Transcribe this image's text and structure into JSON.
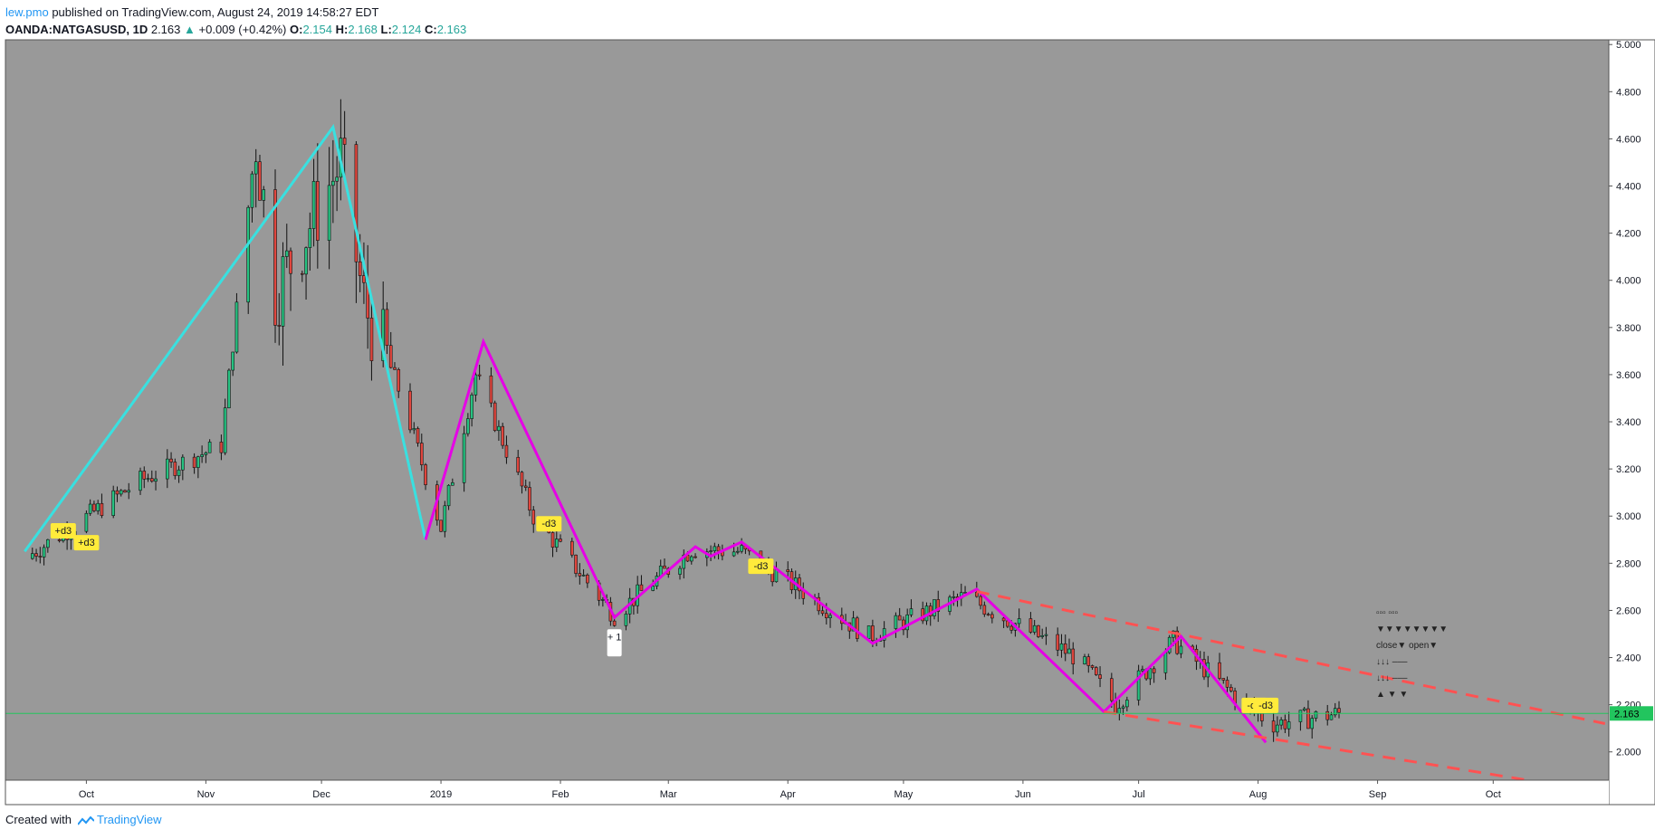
{
  "header": {
    "author": "lew.pmo",
    "published_text": "published on TradingView.com, August 24, 2019 14:58:27 EDT",
    "symbol": "OANDA:NATGASUSD, 1D",
    "last": "2.163",
    "change": "+0.009 (+0.42%)",
    "open_label": "O:",
    "open": "2.154",
    "high_label": "H:",
    "high": "2.168",
    "low_label": "L:",
    "low": "2.124",
    "close_label": "C:",
    "close": "2.163"
  },
  "footer": {
    "created_with": "Created with",
    "brand": "TradingView"
  },
  "colors": {
    "chart_bg": "#999999",
    "bull": "#26c281",
    "bear": "#e0463e",
    "neutral_up": "#f5d142",
    "zigzag_cyan": "#39e0e0",
    "zigzag_magenta": "#e600e6",
    "channel": "#ff5252",
    "price_line": "#22c55e",
    "label_yellow": "#ffeb3b"
  },
  "chart_data": {
    "type": "candlestick",
    "title": "",
    "y_axis_ticks": [
      "5.000",
      "4.800",
      "4.600",
      "4.400",
      "4.200",
      "4.000",
      "3.800",
      "3.600",
      "3.400",
      "3.200",
      "3.000",
      "2.800",
      "2.600",
      "2.400",
      "2.200",
      "2.000"
    ],
    "ylim": [
      1.88,
      5.02
    ],
    "x_axis_ticks": [
      "Oct",
      "Nov",
      "Dec",
      "2019",
      "Feb",
      "Mar",
      "Apr",
      "May",
      "Jun",
      "Jul",
      "Aug",
      "Sep",
      "Oct"
    ],
    "last_price_label": "2.163",
    "anchors": [
      {
        "date": "2018-09-15",
        "close": 2.82
      },
      {
        "date": "2018-10-15",
        "close": 3.15
      },
      {
        "date": "2018-11-05",
        "close": 3.3
      },
      {
        "date": "2018-11-14",
        "close": 4.6
      },
      {
        "date": "2018-11-19",
        "close": 3.95
      },
      {
        "date": "2018-12-06",
        "close": 4.5
      },
      {
        "date": "2018-12-12",
        "close": 3.9
      },
      {
        "date": "2018-12-22",
        "close": 3.5
      },
      {
        "date": "2019-01-01",
        "close": 2.95
      },
      {
        "date": "2019-01-10",
        "close": 3.6
      },
      {
        "date": "2019-01-25",
        "close": 3.0
      },
      {
        "date": "2019-02-15",
        "close": 2.58
      },
      {
        "date": "2019-03-07",
        "close": 2.86
      },
      {
        "date": "2019-03-20",
        "close": 2.85
      },
      {
        "date": "2019-04-05",
        "close": 2.68
      },
      {
        "date": "2019-04-22",
        "close": 2.49
      },
      {
        "date": "2019-05-17",
        "close": 2.66
      },
      {
        "date": "2019-06-15",
        "close": 2.4
      },
      {
        "date": "2019-06-25",
        "close": 2.2
      },
      {
        "date": "2019-07-10",
        "close": 2.47
      },
      {
        "date": "2019-07-30",
        "close": 2.18
      },
      {
        "date": "2019-08-05",
        "close": 2.12
      },
      {
        "date": "2019-08-22",
        "close": 2.163
      }
    ],
    "zigzag_cyan": [
      {
        "date": "2018-09-15",
        "price": 2.85
      },
      {
        "date": "2018-12-04",
        "price": 4.65
      },
      {
        "date": "2018-12-28",
        "price": 2.9
      }
    ],
    "zigzag_magenta": [
      {
        "date": "2018-12-28",
        "price": 2.9
      },
      {
        "date": "2019-01-12",
        "price": 3.74
      },
      {
        "date": "2019-02-15",
        "price": 2.57
      },
      {
        "date": "2019-03-08",
        "price": 2.87
      },
      {
        "date": "2019-03-12",
        "price": 2.83
      },
      {
        "date": "2019-03-20",
        "price": 2.89
      },
      {
        "date": "2019-04-23",
        "price": 2.46
      },
      {
        "date": "2019-05-20",
        "price": 2.69
      },
      {
        "date": "2019-06-22",
        "price": 2.17
      },
      {
        "date": "2019-07-12",
        "price": 2.49
      },
      {
        "date": "2019-08-03",
        "price": 2.04
      }
    ],
    "channel_lines": [
      {
        "from": {
          "date": "2019-05-20",
          "price": 2.68
        },
        "to": {
          "date": "2019-10-30",
          "price": 2.12
        }
      },
      {
        "from": {
          "date": "2019-06-22",
          "price": 2.17
        },
        "to": {
          "date": "2019-10-10",
          "price": 1.88
        }
      }
    ],
    "annotations": [
      {
        "date": "2018-09-25",
        "price": 2.97,
        "text": "+d3"
      },
      {
        "date": "2018-10-01",
        "price": 2.92,
        "text": "+d3"
      },
      {
        "date": "2019-01-29",
        "price": 3.0,
        "text": "-d3"
      },
      {
        "date": "2019-03-25",
        "price": 2.82,
        "text": "-d3"
      },
      {
        "date": "2019-07-31",
        "price": 2.23,
        "text": "-d3"
      },
      {
        "date": "2019-08-03",
        "price": 2.23,
        "text": "-d3"
      },
      {
        "date": "2019-02-15",
        "price": 2.52,
        "text": "+ 1"
      }
    ],
    "table_text": {
      "row1": "▫▫▫ ▫▫▫",
      "row2": "▼▼▼▼▼▼▼▼",
      "row3": "close▼ open▼",
      "row4": "↓↓↓ ‒‒‒",
      "row5": "↓↓↓ ‒‒‒",
      "row7": "▲ ▼ ▼"
    }
  }
}
